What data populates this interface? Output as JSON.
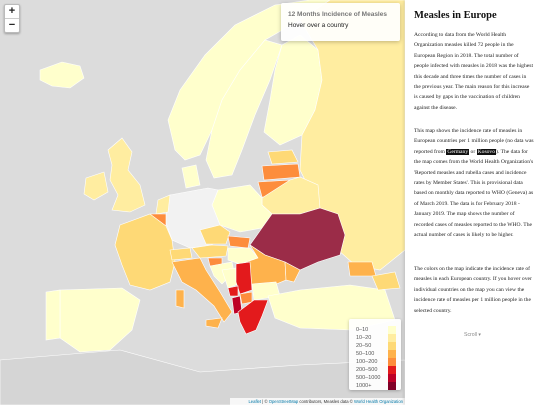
{
  "zoom": {
    "in_label": "+",
    "out_label": "−"
  },
  "info": {
    "title": "12 Months Incidence of Measles",
    "hint": "Hover over a country"
  },
  "legend": {
    "items": [
      {
        "label": "0–10",
        "color": "#ffffcc"
      },
      {
        "label": "10–20",
        "color": "#ffeda0"
      },
      {
        "label": "20–50",
        "color": "#fed976"
      },
      {
        "label": "50–100",
        "color": "#feb24c"
      },
      {
        "label": "100–200",
        "color": "#fd8d3c"
      },
      {
        "label": "200–500",
        "color": "#e31a1c"
      },
      {
        "label": "500–1000",
        "color": "#bd0026"
      },
      {
        "label": "1000+",
        "color": "#800026"
      }
    ]
  },
  "attribution": {
    "leaflet": "Leaflet",
    "sep1": " | © ",
    "osm": "OpenStreetMap",
    "contrib": " contributors, Measles data © ",
    "who": "World Health Organization"
  },
  "panel": {
    "title": "Measles in Europe",
    "p1": "According to data from the World Health Organization measles killed 72 people in the European Region in 2018. The total number of people infected with measles in 2018 was the highest this decade and three times the number of cases in the previous year. The main reason for this increase is caused by gaps in the vaccination of children against the disease.",
    "p2_a": "This map shows the incidence rate of measles in European countries per 1 million people (no data was reported from ",
    "p2_germany": "Germany",
    "p2_or": " or ",
    "p2_kosovo": "Kosovo",
    "p2_b": "). The data for the map comes from the World Health Organization's 'Reported measles and rubella cases and incidence rates by Member States'. This is provisional data based on monthly data reported to WHO (Geneva) as of March 2019. The data is for February 2018 - January 2019. The map shows the number of recorded cases of measles reported to the WHO. The actual number of cases is likely to be higher.",
    "p3": "The colors on the map indicate the incidence rate of measles in each European country. If you hover over individual countries on the map you can view the incidence rate of measles per 1 million people in the selected country.",
    "scroll": "Scroll ▾"
  },
  "colors": {
    "sea": "#dcdcdc",
    "nodata": "#f2f2f2",
    "border": "#ffffff"
  }
}
